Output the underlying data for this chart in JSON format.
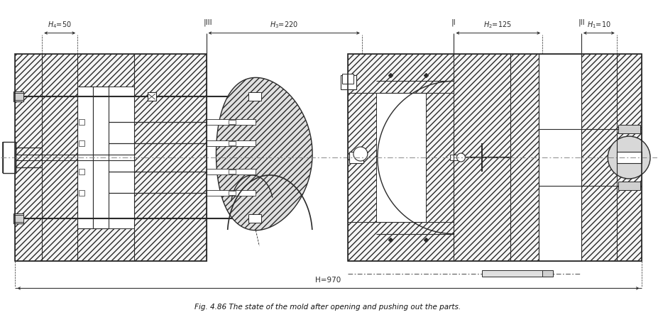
{
  "title": "Fig. 4.86 The state of the mold after opening and pushing out the parts.",
  "bg_color": "#ffffff",
  "lc": "#2a2a2a",
  "annotations": {
    "H4": "$H_4$=50",
    "H3": "$H_3$=220",
    "H2": "$H_2$=125",
    "H1": "$H_1$=10",
    "H": "H=970",
    "III": "| III",
    "I": "| I",
    "II": "| II"
  },
  "figsize": [
    9.27,
    4.54
  ],
  "dpi": 100
}
